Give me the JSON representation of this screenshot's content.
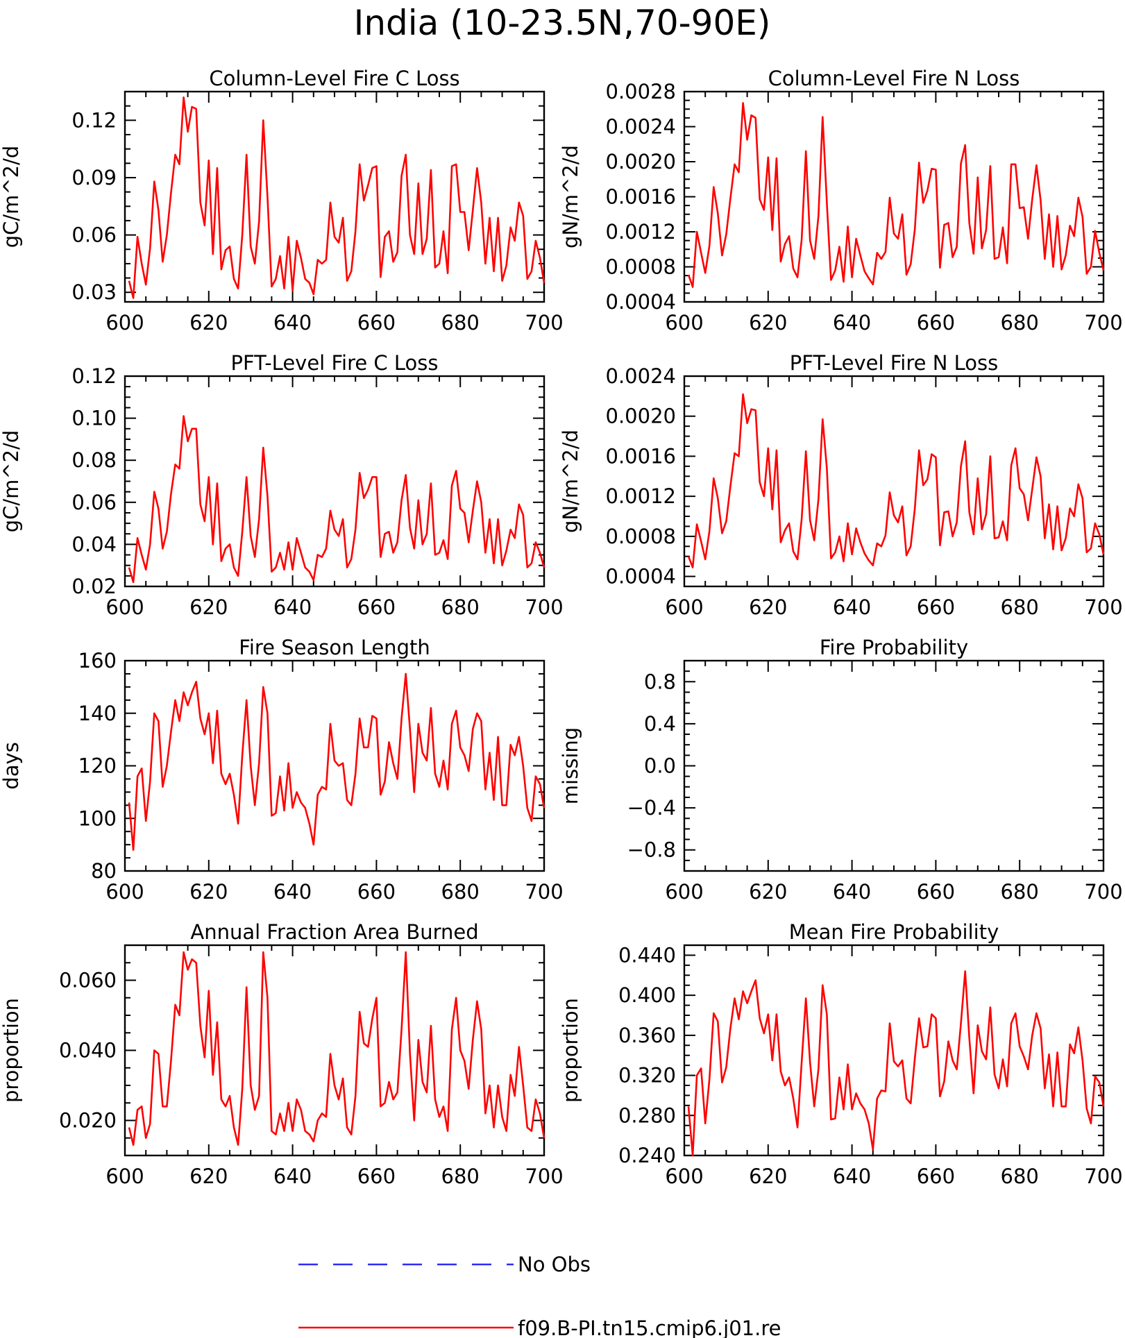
{
  "figure": {
    "title": "India (10-23.5N,70-90E)"
  },
  "legend": {
    "placement": "bottom-center",
    "entries": [
      {
        "label": "No Obs",
        "color": "#2d2df5",
        "dash": true
      },
      {
        "label": "f09.B-PI.tn15.cmip6.j01.re",
        "color": "#ff0000",
        "dash": false
      }
    ]
  },
  "chart_data": [
    {
      "type": "line",
      "title": "Column-Level Fire C Loss",
      "ylabel": "gC/m^2/d",
      "xlim": [
        600,
        700
      ],
      "ylim": [
        0.025,
        0.135
      ],
      "xticks": [
        "600",
        "620",
        "640",
        "660",
        "680",
        "700"
      ],
      "yticks": [
        "0.03",
        "0.06",
        "0.09",
        "0.12"
      ],
      "x_start": 601,
      "series": [
        {
          "color": "#ff0000",
          "values": [
            0.036,
            0.027,
            0.059,
            0.045,
            0.034,
            0.053,
            0.088,
            0.073,
            0.046,
            0.06,
            0.082,
            0.102,
            0.097,
            0.132,
            0.114,
            0.127,
            0.126,
            0.077,
            0.065,
            0.099,
            0.05,
            0.095,
            0.042,
            0.052,
            0.054,
            0.037,
            0.032,
            0.06,
            0.102,
            0.054,
            0.045,
            0.067,
            0.12,
            0.08,
            0.033,
            0.037,
            0.049,
            0.032,
            0.059,
            0.031,
            0.057,
            0.048,
            0.037,
            0.035,
            0.029,
            0.047,
            0.045,
            0.047,
            0.077,
            0.059,
            0.056,
            0.069,
            0.036,
            0.041,
            0.062,
            0.097,
            0.078,
            0.086,
            0.095,
            0.096,
            0.038,
            0.059,
            0.062,
            0.046,
            0.051,
            0.091,
            0.102,
            0.06,
            0.05,
            0.087,
            0.05,
            0.058,
            0.094,
            0.043,
            0.045,
            0.062,
            0.04,
            0.096,
            0.097,
            0.072,
            0.072,
            0.052,
            0.073,
            0.095,
            0.077,
            0.045,
            0.069,
            0.041,
            0.069,
            0.036,
            0.044,
            0.064,
            0.057,
            0.077,
            0.07,
            0.037,
            0.041,
            0.057,
            0.048,
            0.035
          ]
        }
      ]
    },
    {
      "type": "line",
      "title": "Column-Level Fire N Loss",
      "ylabel": "gN/m^2/d",
      "xlim": [
        600,
        700
      ],
      "ylim": [
        0.0004,
        0.0028
      ],
      "xticks": [
        "600",
        "620",
        "640",
        "660",
        "680",
        "700"
      ],
      "yticks": [
        "0.0004",
        "0.0008",
        "0.0012",
        "0.0016",
        "0.0020",
        "0.0024",
        "0.0028"
      ],
      "x_start": 601,
      "series": [
        {
          "color": "#ff0000",
          "values": [
            0.00071,
            0.00057,
            0.0012,
            0.00096,
            0.00073,
            0.00104,
            0.00171,
            0.00141,
            0.00093,
            0.00117,
            0.00158,
            0.00197,
            0.00188,
            0.00267,
            0.00225,
            0.00253,
            0.0025,
            0.00157,
            0.00145,
            0.00205,
            0.00122,
            0.00204,
            0.00086,
            0.00106,
            0.00115,
            0.00078,
            0.00068,
            0.00111,
            0.00212,
            0.0011,
            0.00089,
            0.00138,
            0.00251,
            0.00153,
            0.00065,
            0.00076,
            0.00103,
            0.00063,
            0.00126,
            0.00068,
            0.00112,
            0.00093,
            0.00075,
            0.00067,
            0.0006,
            0.00096,
            0.00089,
            0.00097,
            0.00159,
            0.00118,
            0.00112,
            0.0014,
            0.00071,
            0.00083,
            0.00123,
            0.00199,
            0.00153,
            0.00167,
            0.00192,
            0.00191,
            0.00079,
            0.00128,
            0.0013,
            0.00091,
            0.00103,
            0.00198,
            0.00219,
            0.0013,
            0.00095,
            0.00182,
            0.00101,
            0.00122,
            0.00195,
            0.00089,
            0.00091,
            0.00125,
            0.00084,
            0.00197,
            0.00197,
            0.00147,
            0.00148,
            0.00112,
            0.00157,
            0.00196,
            0.00156,
            0.00089,
            0.0014,
            0.0008,
            0.00138,
            0.00077,
            0.00093,
            0.00127,
            0.00115,
            0.00159,
            0.00137,
            0.00072,
            0.0008,
            0.00121,
            0.00096,
            0.00076
          ]
        }
      ]
    },
    {
      "type": "line",
      "title": "PFT-Level Fire C Loss",
      "ylabel": "gC/m^2/d",
      "xlim": [
        600,
        700
      ],
      "ylim": [
        0.02,
        0.12
      ],
      "xticks": [
        "600",
        "620",
        "640",
        "660",
        "680",
        "700"
      ],
      "yticks": [
        "0.02",
        "0.04",
        "0.06",
        "0.08",
        "0.10",
        "0.12"
      ],
      "x_start": 601,
      "series": [
        {
          "color": "#ff0000",
          "values": [
            0.029,
            0.022,
            0.043,
            0.035,
            0.028,
            0.04,
            0.065,
            0.057,
            0.038,
            0.046,
            0.064,
            0.078,
            0.076,
            0.101,
            0.089,
            0.095,
            0.095,
            0.059,
            0.051,
            0.072,
            0.04,
            0.069,
            0.032,
            0.038,
            0.04,
            0.029,
            0.025,
            0.046,
            0.072,
            0.044,
            0.034,
            0.052,
            0.086,
            0.063,
            0.027,
            0.029,
            0.036,
            0.028,
            0.041,
            0.028,
            0.043,
            0.036,
            0.029,
            0.027,
            0.023,
            0.035,
            0.034,
            0.038,
            0.056,
            0.047,
            0.044,
            0.052,
            0.029,
            0.033,
            0.047,
            0.074,
            0.062,
            0.066,
            0.072,
            0.072,
            0.034,
            0.045,
            0.046,
            0.036,
            0.041,
            0.061,
            0.073,
            0.048,
            0.038,
            0.061,
            0.04,
            0.045,
            0.069,
            0.035,
            0.036,
            0.042,
            0.033,
            0.068,
            0.075,
            0.057,
            0.055,
            0.041,
            0.056,
            0.07,
            0.06,
            0.036,
            0.052,
            0.031,
            0.052,
            0.03,
            0.037,
            0.047,
            0.043,
            0.059,
            0.054,
            0.029,
            0.031,
            0.041,
            0.036,
            0.029
          ]
        }
      ]
    },
    {
      "type": "line",
      "title": "PFT-Level Fire N Loss",
      "ylabel": "gN/m^2/d",
      "xlim": [
        600,
        700
      ],
      "ylim": [
        0.0003,
        0.0024
      ],
      "xticks": [
        "600",
        "620",
        "640",
        "660",
        "680",
        "700"
      ],
      "yticks": [
        "0.0004",
        "0.0008",
        "0.0012",
        "0.0016",
        "0.0020",
        "0.0024"
      ],
      "x_start": 601,
      "series": [
        {
          "color": "#ff0000",
          "values": [
            0.0006,
            0.00049,
            0.00092,
            0.00075,
            0.00057,
            0.00085,
            0.00138,
            0.00118,
            0.00083,
            0.00095,
            0.0013,
            0.00163,
            0.0016,
            0.00222,
            0.00193,
            0.00207,
            0.00206,
            0.00134,
            0.0012,
            0.00168,
            0.00107,
            0.00166,
            0.00074,
            0.00086,
            0.00093,
            0.00065,
            0.00057,
            0.00097,
            0.00165,
            0.00096,
            0.00076,
            0.00117,
            0.00197,
            0.00148,
            0.00058,
            0.00064,
            0.0008,
            0.00055,
            0.00093,
            0.00062,
            0.00088,
            0.00074,
            0.00063,
            0.00056,
            0.00051,
            0.00073,
            0.0007,
            0.00081,
            0.00124,
            0.00101,
            0.00094,
            0.0011,
            0.00061,
            0.0007,
            0.00108,
            0.00166,
            0.00131,
            0.00137,
            0.00162,
            0.00159,
            0.00071,
            0.00104,
            0.00105,
            0.0008,
            0.00094,
            0.0015,
            0.00175,
            0.00104,
            0.00082,
            0.00138,
            0.00087,
            0.00102,
            0.0016,
            0.00078,
            0.00079,
            0.00095,
            0.00076,
            0.00151,
            0.00168,
            0.00128,
            0.00122,
            0.00096,
            0.00127,
            0.00159,
            0.0014,
            0.00078,
            0.00112,
            0.00067,
            0.0011,
            0.00066,
            0.00078,
            0.00108,
            0.001,
            0.00132,
            0.00118,
            0.00064,
            0.00068,
            0.00093,
            0.00082,
            0.00062
          ]
        }
      ]
    },
    {
      "type": "line",
      "title": "Fire Season Length",
      "ylabel": "days",
      "xlim": [
        600,
        700
      ],
      "ylim": [
        80,
        160
      ],
      "xticks": [
        "600",
        "620",
        "640",
        "660",
        "680",
        "700"
      ],
      "yticks": [
        "80",
        "100",
        "120",
        "140",
        "160"
      ],
      "x_start": 601,
      "series": [
        {
          "color": "#ff0000",
          "values": [
            106,
            88,
            116,
            119,
            99,
            114,
            140,
            137,
            112,
            120,
            133,
            145,
            137,
            148,
            143,
            148,
            152,
            138,
            132,
            140,
            121,
            141,
            117,
            113,
            117,
            109,
            98,
            124,
            145,
            120,
            105,
            121,
            150,
            140,
            101,
            102,
            116,
            103,
            121,
            104,
            110,
            106,
            104,
            98,
            90,
            109,
            112,
            111,
            136,
            122,
            120,
            121,
            107,
            105,
            117,
            138,
            127,
            127,
            139,
            138,
            109,
            114,
            129,
            121,
            115,
            138,
            155,
            134,
            110,
            136,
            125,
            122,
            142,
            117,
            112,
            122,
            111,
            136,
            141,
            127,
            124,
            118,
            134,
            140,
            137,
            111,
            125,
            107,
            131,
            105,
            105,
            128,
            124,
            131,
            120,
            104,
            99,
            116,
            113,
            104
          ]
        }
      ]
    },
    {
      "type": "line",
      "title": "Fire Probability",
      "ylabel": "missing",
      "xlim": [
        600,
        700
      ],
      "ylim": [
        -1,
        1
      ],
      "xticks": [
        "600",
        "620",
        "640",
        "660",
        "680",
        "700"
      ],
      "yticks": [
        "−0.8",
        "−0.4",
        "0.0",
        "0.4",
        "0.8"
      ],
      "x_start": 601,
      "series": []
    },
    {
      "type": "line",
      "title": "Annual Fraction Area Burned",
      "ylabel": "proportion",
      "xlim": [
        600,
        700
      ],
      "ylim": [
        0.01,
        0.07
      ],
      "xticks": [
        "600",
        "620",
        "640",
        "660",
        "680",
        "700"
      ],
      "yticks": [
        "0.020",
        "0.040",
        "0.060"
      ],
      "x_start": 601,
      "series": [
        {
          "color": "#ff0000",
          "values": [
            0.018,
            0.013,
            0.023,
            0.024,
            0.015,
            0.019,
            0.04,
            0.039,
            0.024,
            0.024,
            0.037,
            0.053,
            0.05,
            0.068,
            0.063,
            0.066,
            0.065,
            0.047,
            0.038,
            0.057,
            0.033,
            0.048,
            0.026,
            0.024,
            0.027,
            0.018,
            0.013,
            0.029,
            0.058,
            0.03,
            0.023,
            0.027,
            0.068,
            0.055,
            0.017,
            0.016,
            0.022,
            0.017,
            0.025,
            0.017,
            0.026,
            0.023,
            0.017,
            0.016,
            0.014,
            0.02,
            0.022,
            0.021,
            0.039,
            0.03,
            0.026,
            0.032,
            0.018,
            0.016,
            0.027,
            0.051,
            0.042,
            0.041,
            0.049,
            0.055,
            0.024,
            0.025,
            0.031,
            0.026,
            0.028,
            0.046,
            0.068,
            0.039,
            0.02,
            0.043,
            0.031,
            0.028,
            0.047,
            0.026,
            0.021,
            0.024,
            0.017,
            0.046,
            0.055,
            0.04,
            0.037,
            0.029,
            0.043,
            0.054,
            0.046,
            0.022,
            0.03,
            0.018,
            0.03,
            0.021,
            0.017,
            0.033,
            0.027,
            0.041,
            0.03,
            0.018,
            0.017,
            0.026,
            0.022,
            0.015
          ]
        }
      ]
    },
    {
      "type": "line",
      "title": "Mean Fire Probability",
      "ylabel": "proportion",
      "xlim": [
        600,
        700
      ],
      "ylim": [
        0.24,
        0.45
      ],
      "xticks": [
        "600",
        "620",
        "640",
        "660",
        "680",
        "700"
      ],
      "yticks": [
        "0.240",
        "0.280",
        "0.320",
        "0.360",
        "0.400",
        "0.440"
      ],
      "x_start": 601,
      "series": [
        {
          "color": "#ff0000",
          "values": [
            0.289,
            0.24,
            0.32,
            0.327,
            0.272,
            0.316,
            0.382,
            0.374,
            0.313,
            0.328,
            0.367,
            0.397,
            0.376,
            0.404,
            0.392,
            0.404,
            0.415,
            0.377,
            0.362,
            0.381,
            0.335,
            0.381,
            0.324,
            0.31,
            0.318,
            0.297,
            0.268,
            0.333,
            0.397,
            0.333,
            0.289,
            0.326,
            0.41,
            0.381,
            0.276,
            0.277,
            0.318,
            0.286,
            0.331,
            0.286,
            0.302,
            0.292,
            0.286,
            0.272,
            0.246,
            0.297,
            0.305,
            0.304,
            0.372,
            0.334,
            0.329,
            0.335,
            0.297,
            0.292,
            0.337,
            0.377,
            0.348,
            0.349,
            0.381,
            0.377,
            0.299,
            0.314,
            0.354,
            0.335,
            0.326,
            0.372,
            0.424,
            0.357,
            0.302,
            0.37,
            0.344,
            0.336,
            0.388,
            0.321,
            0.307,
            0.336,
            0.309,
            0.372,
            0.382,
            0.349,
            0.339,
            0.326,
            0.36,
            0.382,
            0.367,
            0.307,
            0.341,
            0.289,
            0.343,
            0.289,
            0.289,
            0.351,
            0.342,
            0.368,
            0.335,
            0.287,
            0.272,
            0.319,
            0.313,
            0.289
          ]
        }
      ]
    }
  ]
}
